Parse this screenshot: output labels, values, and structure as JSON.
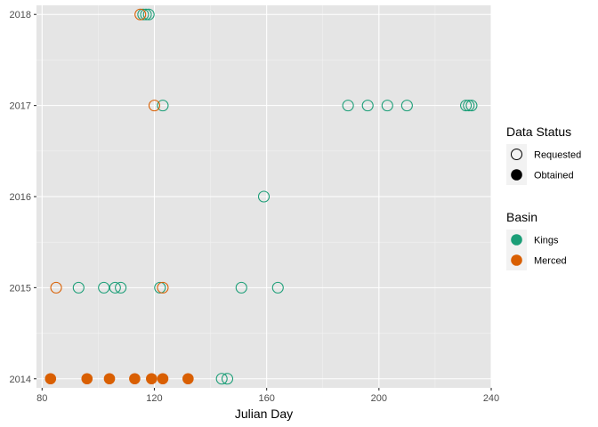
{
  "chart_data": {
    "type": "scatter",
    "title": "",
    "xlabel": "Julian Day",
    "ylabel": "",
    "xlim": [
      78,
      240
    ],
    "ylim": [
      2013.9,
      2018.1
    ],
    "xticks": [
      80,
      120,
      160,
      200,
      240
    ],
    "xtick_labels": [
      "80",
      "120",
      "160",
      "200",
      "240"
    ],
    "yticks": [
      2014,
      2015,
      2016,
      2017,
      2018
    ],
    "ytick_labels": [
      "2014",
      "2015",
      "2016",
      "2017",
      "2018"
    ],
    "grid": true,
    "legend_placement": "right",
    "legends": [
      {
        "title": "Data Status",
        "entries": [
          {
            "label": "Requested",
            "shape": "open-circle"
          },
          {
            "label": "Obtained",
            "shape": "filled-circle"
          }
        ]
      },
      {
        "title": "Basin",
        "entries": [
          {
            "label": "Kings",
            "color": "#1b9e77"
          },
          {
            "label": "Merced",
            "color": "#d95f02"
          }
        ]
      }
    ],
    "series": [
      {
        "name": "Kings",
        "color": "#1b9e77",
        "points": [
          {
            "x": 116,
            "y": 2018,
            "status": "Requested"
          },
          {
            "x": 117,
            "y": 2018,
            "status": "Requested"
          },
          {
            "x": 118,
            "y": 2018,
            "status": "Requested"
          },
          {
            "x": 123,
            "y": 2017,
            "status": "Requested"
          },
          {
            "x": 189,
            "y": 2017,
            "status": "Requested"
          },
          {
            "x": 196,
            "y": 2017,
            "status": "Requested"
          },
          {
            "x": 203,
            "y": 2017,
            "status": "Requested"
          },
          {
            "x": 210,
            "y": 2017,
            "status": "Requested"
          },
          {
            "x": 231,
            "y": 2017,
            "status": "Requested"
          },
          {
            "x": 232,
            "y": 2017,
            "status": "Requested"
          },
          {
            "x": 233,
            "y": 2017,
            "status": "Requested"
          },
          {
            "x": 159,
            "y": 2016,
            "status": "Requested"
          },
          {
            "x": 93,
            "y": 2015,
            "status": "Requested"
          },
          {
            "x": 102,
            "y": 2015,
            "status": "Requested"
          },
          {
            "x": 106,
            "y": 2015,
            "status": "Requested"
          },
          {
            "x": 108,
            "y": 2015,
            "status": "Requested"
          },
          {
            "x": 122,
            "y": 2015,
            "status": "Requested"
          },
          {
            "x": 151,
            "y": 2015,
            "status": "Requested"
          },
          {
            "x": 164,
            "y": 2015,
            "status": "Requested"
          },
          {
            "x": 144,
            "y": 2014,
            "status": "Requested"
          },
          {
            "x": 146,
            "y": 2014,
            "status": "Requested"
          }
        ]
      },
      {
        "name": "Merced",
        "color": "#d95f02",
        "points": [
          {
            "x": 115,
            "y": 2018,
            "status": "Requested"
          },
          {
            "x": 120,
            "y": 2017,
            "status": "Requested"
          },
          {
            "x": 85,
            "y": 2015,
            "status": "Requested"
          },
          {
            "x": 123,
            "y": 2015,
            "status": "Requested"
          },
          {
            "x": 83,
            "y": 2014,
            "status": "Obtained"
          },
          {
            "x": 96,
            "y": 2014,
            "status": "Obtained"
          },
          {
            "x": 104,
            "y": 2014,
            "status": "Obtained"
          },
          {
            "x": 113,
            "y": 2014,
            "status": "Obtained"
          },
          {
            "x": 119,
            "y": 2014,
            "status": "Obtained"
          },
          {
            "x": 123,
            "y": 2014,
            "status": "Obtained"
          },
          {
            "x": 132,
            "y": 2014,
            "status": "Obtained"
          }
        ]
      }
    ]
  },
  "colors": {
    "panel_background": "#e5e5e5",
    "grid_major": "#ffffff",
    "grid_minor": "#f2f2f2",
    "legend_key_background": "#f2f2f2"
  }
}
